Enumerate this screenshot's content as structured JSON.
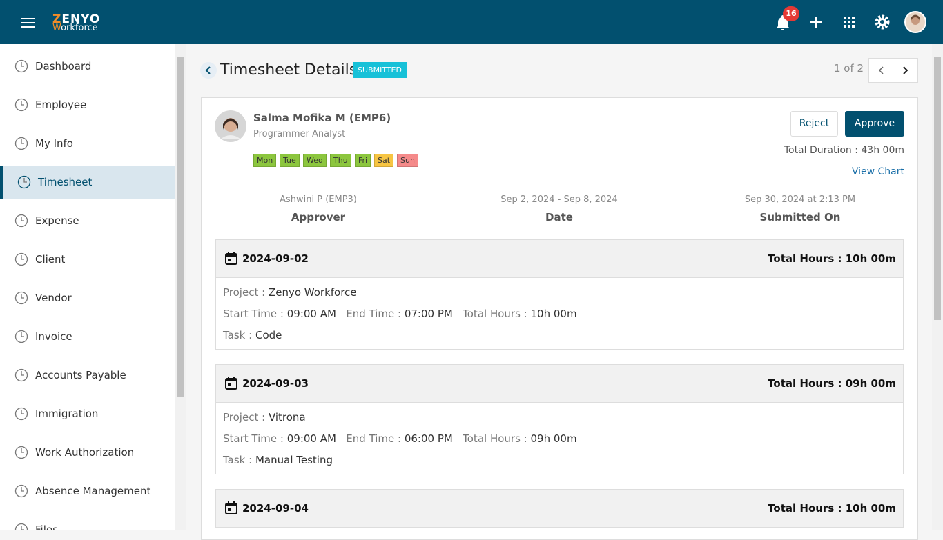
{
  "header": {
    "logo_top": "ZENYO",
    "logo_bottom": "Workforce",
    "notifications": 16
  },
  "sidebar": {
    "items": [
      "Dashboard",
      "Employee",
      "My Info",
      "Timesheet",
      "Expense",
      "Client",
      "Vendor",
      "Invoice",
      "Accounts Payable",
      "Immigration",
      "Work Authorization",
      "Absence Management",
      "Files"
    ],
    "active": 3
  },
  "page": {
    "title": "Timesheet Details",
    "status": "SUBMITTED",
    "pager": "1 of 2"
  },
  "employee": {
    "name": "Salma Mofika M (EMP6)",
    "role": "Programmer Analyst",
    "days": [
      {
        "label": "Mon",
        "color": "#8cc63e"
      },
      {
        "label": "Tue",
        "color": "#8cc63e"
      },
      {
        "label": "Wed",
        "color": "#8cc63e"
      },
      {
        "label": "Thu",
        "color": "#8cc63e"
      },
      {
        "label": "Fri",
        "color": "#8cc63e"
      },
      {
        "label": "Sat",
        "color": "#f7c543"
      },
      {
        "label": "Sun",
        "color": "#f58a8a"
      }
    ],
    "reject": "Reject",
    "approve": "Approve",
    "total_duration": "Total Duration : 43h 00m",
    "view_chart": "View Chart"
  },
  "summary": [
    {
      "value": "Ashwini P (EMP3)",
      "label": "Approver"
    },
    {
      "value": "Sep 2, 2024 - Sep 8, 2024",
      "label": "Date"
    },
    {
      "value": "Sep 30, 2024 at 2:13 PM",
      "label": "Submitted On"
    }
  ],
  "labels": {
    "project": "Project :",
    "start": "Start Time :",
    "end": "End Time :",
    "total": "Total Hours :",
    "task": "Task :"
  },
  "entries": [
    {
      "date": "2024-09-02",
      "total_hours": "10h 00m",
      "project": "Zenyo Workforce",
      "start": "09:00 AM",
      "end": "07:00 PM",
      "hours": "10h 00m",
      "task": "Code"
    },
    {
      "date": "2024-09-03",
      "total_hours": "09h 00m",
      "project": "Vitrona",
      "start": "09:00 AM",
      "end": "06:00 PM",
      "hours": "09h 00m",
      "task": "Manual Testing"
    },
    {
      "date": "2024-09-04",
      "total_hours": "10h 00m"
    }
  ]
}
